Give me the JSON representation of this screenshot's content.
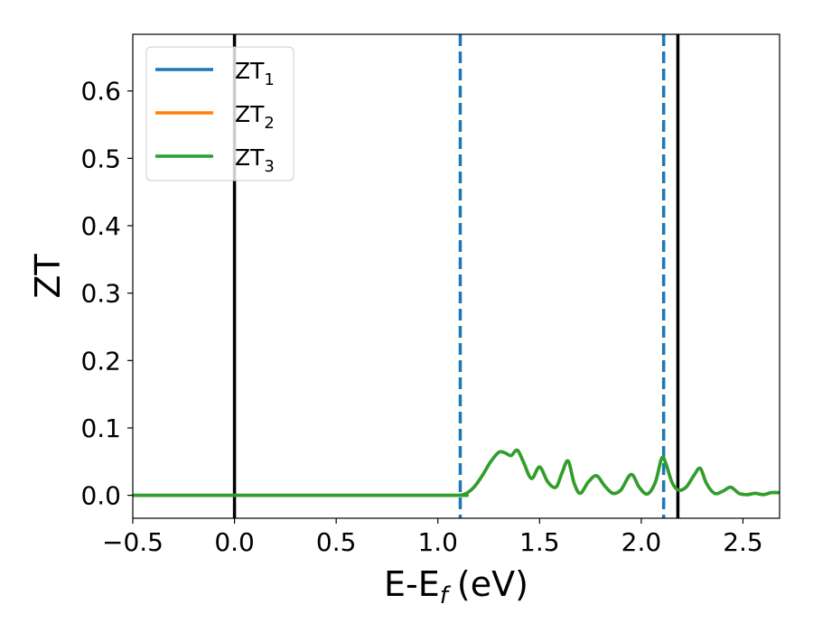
{
  "chart_data": {
    "type": "line",
    "xlabel_main": "E-E",
    "xlabel_sub": "f",
    "xlabel_unit": "(eV)",
    "ylabel": "ZT",
    "xlim": [
      -0.5,
      2.68
    ],
    "ylim": [
      -0.034,
      0.684
    ],
    "xticks": [
      -0.5,
      0.0,
      0.5,
      1.0,
      1.5,
      2.0,
      2.5
    ],
    "xtick_labels": [
      "−0.5",
      "0.0",
      "0.5",
      "1.0",
      "1.5",
      "2.0",
      "2.5"
    ],
    "yticks": [
      0.0,
      0.1,
      0.2,
      0.3,
      0.4,
      0.5,
      0.6
    ],
    "ytick_labels": [
      "0.0",
      "0.1",
      "0.2",
      "0.3",
      "0.4",
      "0.5",
      "0.6"
    ],
    "grid": false,
    "legend_position": "top-left",
    "vlines": [
      {
        "x": 0.0,
        "style": "solid",
        "color": "#000000"
      },
      {
        "x": 2.18,
        "style": "solid",
        "color": "#000000"
      },
      {
        "x": 1.11,
        "style": "dashed",
        "color": "#1f77b4"
      },
      {
        "x": 2.11,
        "style": "dashed",
        "color": "#1f77b4"
      }
    ],
    "series": [
      {
        "name": "ZT",
        "sub": "1",
        "color": "#1f77b4",
        "x": [
          -0.5,
          1.0,
          1.1,
          1.14,
          1.18,
          1.22,
          1.26,
          1.3,
          1.33,
          1.36,
          1.39,
          1.42,
          1.46,
          1.5,
          1.54,
          1.58,
          1.61,
          1.64,
          1.67,
          1.7,
          1.74,
          1.78,
          1.82,
          1.86,
          1.9,
          1.95,
          1.99,
          2.03,
          2.07,
          2.1,
          2.12,
          2.15,
          2.18,
          2.22,
          2.26,
          2.29,
          2.32,
          2.36,
          2.4,
          2.44,
          2.48,
          2.52,
          2.56,
          2.6,
          2.64,
          2.68
        ],
        "y": [
          0.0,
          0.0,
          0.0,
          0.003,
          0.013,
          0.03,
          0.05,
          0.064,
          0.063,
          0.059,
          0.067,
          0.05,
          0.025,
          0.042,
          0.02,
          0.012,
          0.033,
          0.051,
          0.018,
          0.003,
          0.02,
          0.029,
          0.014,
          0.003,
          0.008,
          0.031,
          0.012,
          0.002,
          0.02,
          0.055,
          0.048,
          0.02,
          0.008,
          0.012,
          0.03,
          0.04,
          0.018,
          0.003,
          0.006,
          0.012,
          0.003,
          0.001,
          0.003,
          0.001,
          0.004,
          0.004
        ]
      },
      {
        "name": "ZT",
        "sub": "2",
        "color": "#ff7f0e",
        "x": [
          -0.5,
          1.0,
          1.1,
          1.14,
          1.18,
          1.22,
          1.26,
          1.3,
          1.33,
          1.36,
          1.39,
          1.42,
          1.46,
          1.5,
          1.54,
          1.58,
          1.61,
          1.64,
          1.67,
          1.7,
          1.74,
          1.78,
          1.82,
          1.86,
          1.9,
          1.95,
          1.99,
          2.03,
          2.07,
          2.1,
          2.12,
          2.15,
          2.18,
          2.22,
          2.26,
          2.29,
          2.32,
          2.36,
          2.4,
          2.44,
          2.48,
          2.52,
          2.56,
          2.6,
          2.64,
          2.68
        ],
        "y": [
          0.0,
          0.0,
          0.0,
          0.003,
          0.013,
          0.03,
          0.05,
          0.064,
          0.063,
          0.059,
          0.067,
          0.05,
          0.025,
          0.042,
          0.02,
          0.012,
          0.033,
          0.051,
          0.018,
          0.003,
          0.02,
          0.029,
          0.014,
          0.003,
          0.008,
          0.031,
          0.012,
          0.002,
          0.02,
          0.055,
          0.048,
          0.02,
          0.008,
          0.012,
          0.03,
          0.04,
          0.018,
          0.003,
          0.006,
          0.012,
          0.003,
          0.001,
          0.003,
          0.001,
          0.004,
          0.004
        ]
      },
      {
        "name": "ZT",
        "sub": "3",
        "color": "#2ca02c",
        "x": [
          -0.5,
          1.0,
          1.1,
          1.14,
          1.18,
          1.22,
          1.26,
          1.3,
          1.33,
          1.36,
          1.39,
          1.42,
          1.46,
          1.5,
          1.54,
          1.58,
          1.61,
          1.64,
          1.67,
          1.7,
          1.74,
          1.78,
          1.82,
          1.86,
          1.9,
          1.95,
          1.99,
          2.03,
          2.07,
          2.1,
          2.12,
          2.15,
          2.18,
          2.22,
          2.26,
          2.29,
          2.32,
          2.36,
          2.4,
          2.44,
          2.48,
          2.52,
          2.56,
          2.6,
          2.64,
          2.68
        ],
        "y": [
          0.0,
          0.0,
          0.0,
          0.003,
          0.013,
          0.03,
          0.05,
          0.064,
          0.063,
          0.059,
          0.067,
          0.05,
          0.025,
          0.042,
          0.02,
          0.012,
          0.033,
          0.051,
          0.018,
          0.003,
          0.02,
          0.029,
          0.014,
          0.003,
          0.008,
          0.031,
          0.012,
          0.002,
          0.02,
          0.055,
          0.048,
          0.02,
          0.008,
          0.012,
          0.03,
          0.04,
          0.018,
          0.003,
          0.006,
          0.012,
          0.003,
          0.001,
          0.003,
          0.001,
          0.004,
          0.004
        ]
      }
    ]
  }
}
